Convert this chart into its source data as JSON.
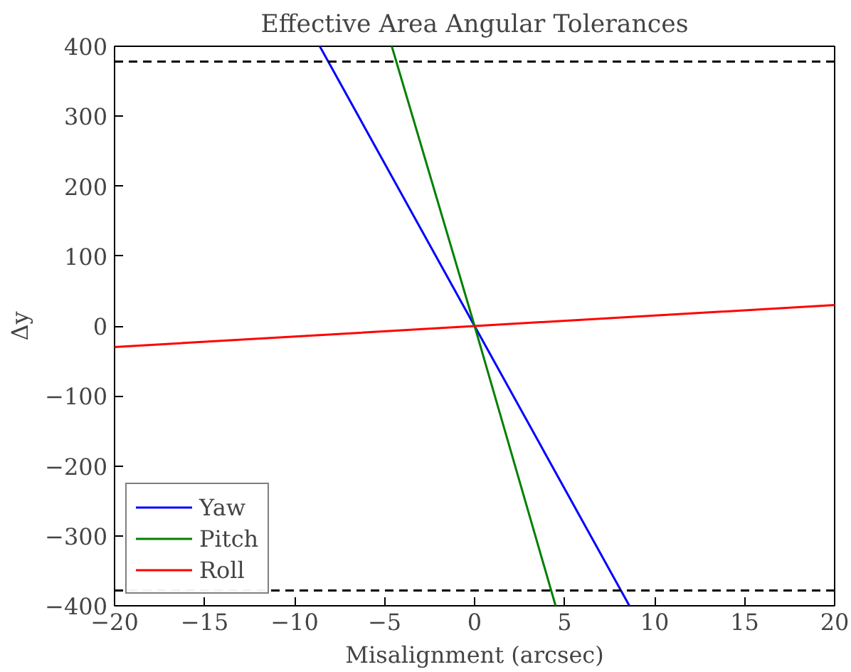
{
  "chart_data": {
    "type": "line",
    "title": "Effective Area Angular Tolerances",
    "xlabel": "Misalignment (arcsec)",
    "ylabel": "Δy",
    "xlim": [
      -20,
      20
    ],
    "ylim": [
      -400,
      400
    ],
    "xticks": [
      {
        "value": -20,
        "label": "−20"
      },
      {
        "value": -15,
        "label": "−15"
      },
      {
        "value": -10,
        "label": "−10"
      },
      {
        "value": -5,
        "label": "−5"
      },
      0,
      5,
      10,
      15,
      20
    ],
    "yticks": [
      {
        "value": -400,
        "label": "−400"
      },
      {
        "value": -300,
        "label": "−300"
      },
      {
        "value": -200,
        "label": "−200"
      },
      {
        "value": -100,
        "label": "−100"
      },
      0,
      100,
      200,
      300,
      400
    ],
    "series": [
      {
        "name": "Yaw",
        "color": "#0000ff",
        "x": [
          -8.6,
          0,
          8.6
        ],
        "values": [
          400,
          0,
          -400
        ]
      },
      {
        "name": "Pitch",
        "color": "#008000",
        "x": [
          -4.6,
          0,
          4.5
        ],
        "values": [
          400,
          0,
          -400
        ]
      },
      {
        "name": "Roll",
        "color": "#ff0000",
        "x": [
          -20,
          0,
          20
        ],
        "values": [
          -30,
          0,
          30
        ]
      }
    ],
    "ref_lines": [
      {
        "axis": "y",
        "value": 378,
        "color": "#000000",
        "line_style": "dashed"
      },
      {
        "axis": "y",
        "value": -378,
        "color": "#000000",
        "line_style": "dashed"
      }
    ],
    "legend": "bottom left",
    "grid": false,
    "marker": "none",
    "line_style": "solid"
  }
}
